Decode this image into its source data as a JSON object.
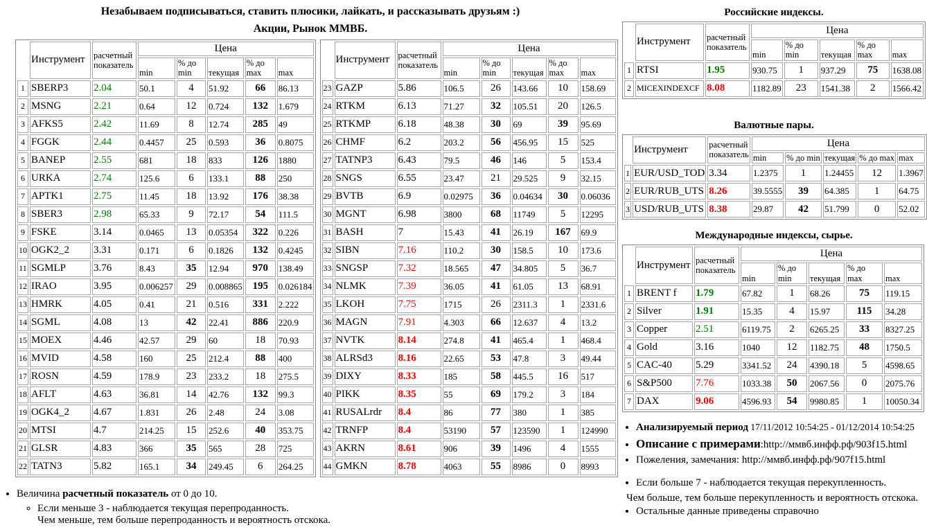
{
  "page": {
    "title_line1": "Незабываем подписываться, ставить плюсики, лайкать, и рассказывать друзьям :)",
    "stocks_title": "Акции, Рынок ММВБ."
  },
  "colors": {
    "oversold_green": "#008000",
    "overbought_red": "#ff0000",
    "table_border_gray": "#a4a4a4"
  },
  "headers": {
    "instrument": "Инструмент",
    "indicator": "расчетный показатель",
    "price": "Цена",
    "min": "min",
    "pct_to_min": "% до min",
    "current": "текущая",
    "pct_to_max": "% до max",
    "max": "max"
  },
  "stocks_left": {
    "rows": [
      {
        "n": "1",
        "name": "SBERP3",
        "ind": "2.04",
        "ic": "green",
        "min": "50.1",
        "pmin": "4",
        "cur": "51.92",
        "pmax": "66",
        "pmaxB": true,
        "max": "86.13"
      },
      {
        "n": "2",
        "name": "MSNG",
        "ind": "2.21",
        "ic": "green",
        "min": "0.64",
        "pmin": "12",
        "cur": "0.724",
        "pmax": "132",
        "pmaxB": true,
        "max": "1.679"
      },
      {
        "n": "3",
        "name": "AFKS5",
        "ind": "2.42",
        "ic": "green",
        "min": "11.69",
        "pmin": "8",
        "cur": "12.74",
        "pmax": "285",
        "pmaxB": true,
        "max": "49"
      },
      {
        "n": "4",
        "name": "FGGK",
        "ind": "2.44",
        "ic": "green",
        "min": "0.4457",
        "pmin": "25",
        "cur": "0.593",
        "pmax": "36",
        "pmaxB": true,
        "max": "0.8075"
      },
      {
        "n": "5",
        "name": "BANEP",
        "ind": "2.55",
        "ic": "green",
        "min": "681",
        "pmin": "18",
        "cur": "833",
        "pmax": "126",
        "pmaxB": true,
        "max": "1880"
      },
      {
        "n": "6",
        "name": "URKA",
        "ind": "2.74",
        "ic": "green",
        "min": "125.6",
        "pmin": "6",
        "cur": "133.1",
        "pmax": "88",
        "pmaxB": true,
        "max": "250"
      },
      {
        "n": "7",
        "name": "APTK1",
        "ind": "2.75",
        "ic": "green",
        "min": "11.45",
        "pmin": "18",
        "cur": "13.92",
        "pmax": "176",
        "pmaxB": true,
        "max": "38.38"
      },
      {
        "n": "8",
        "name": "SBER3",
        "ind": "2.98",
        "ic": "green",
        "min": "65.33",
        "pmin": "9",
        "cur": "72.17",
        "pmax": "54",
        "pmaxB": true,
        "max": "111.5"
      },
      {
        "n": "9",
        "name": "FSKE",
        "ind": "3.14",
        "ic": "",
        "min": "0.0465",
        "pmin": "13",
        "cur": "0.05354",
        "pmax": "322",
        "pmaxB": true,
        "max": "0.226"
      },
      {
        "n": "10",
        "name": "OGK2_2",
        "ind": "3.31",
        "ic": "",
        "min": "0.171",
        "pmin": "6",
        "cur": "0.1826",
        "pmax": "132",
        "pmaxB": true,
        "max": "0.4245"
      },
      {
        "n": "11",
        "name": "SGMLP",
        "ind": "3.76",
        "ic": "",
        "min": "8.43",
        "pmin": "35",
        "pminB": true,
        "cur": "12.94",
        "pmax": "970",
        "pmaxB": true,
        "max": "138.49"
      },
      {
        "n": "12",
        "name": "IRAO",
        "ind": "3.95",
        "ic": "",
        "min": "0.006257",
        "pmin": "29",
        "cur": "0.008865",
        "pmax": "195",
        "pmaxB": true,
        "max": "0.026184"
      },
      {
        "n": "13",
        "name": "HMRK",
        "ind": "4.05",
        "ic": "",
        "min": "0.41",
        "pmin": "21",
        "cur": "0.516",
        "pmax": "331",
        "pmaxB": true,
        "max": "2.222"
      },
      {
        "n": "14",
        "name": "SGML",
        "ind": "4.08",
        "ic": "",
        "min": "13",
        "pmin": "42",
        "pminB": true,
        "cur": "22.41",
        "pmax": "886",
        "pmaxB": true,
        "max": "220.9"
      },
      {
        "n": "15",
        "name": "MOEX",
        "ind": "4.46",
        "ic": "",
        "min": "42.57",
        "pmin": "29",
        "cur": "60",
        "pmax": "18",
        "max": "70.93"
      },
      {
        "n": "16",
        "name": "MVID",
        "ind": "4.58",
        "ic": "",
        "min": "160",
        "pmin": "25",
        "cur": "212.4",
        "pmax": "88",
        "pmaxB": true,
        "max": "400"
      },
      {
        "n": "17",
        "name": "ROSN",
        "ind": "4.59",
        "ic": "",
        "min": "178.9",
        "pmin": "23",
        "cur": "233.2",
        "pmax": "18",
        "max": "275.5"
      },
      {
        "n": "18",
        "name": "AFLT",
        "ind": "4.63",
        "ic": "",
        "min": "36.81",
        "pmin": "14",
        "cur": "42.76",
        "pmax": "132",
        "pmaxB": true,
        "max": "99.3"
      },
      {
        "n": "19",
        "name": "OGK4_2",
        "ind": "4.67",
        "ic": "",
        "min": "1.831",
        "pmin": "26",
        "cur": "2.48",
        "pmax": "24",
        "max": "3.08"
      },
      {
        "n": "20",
        "name": "MTSI",
        "ind": "4.7",
        "ic": "",
        "min": "214.25",
        "pmin": "15",
        "cur": "252.6",
        "pmax": "40",
        "pmaxB": true,
        "max": "353.75"
      },
      {
        "n": "21",
        "name": "GLSR",
        "ind": "4.83",
        "ic": "",
        "min": "366",
        "pmin": "35",
        "pminB": true,
        "cur": "565",
        "pmax": "28",
        "max": "725"
      },
      {
        "n": "22",
        "name": "TATN3",
        "ind": "5.82",
        "ic": "",
        "min": "165.1",
        "pmin": "34",
        "pminB": true,
        "cur": "249.45",
        "pmax": "6",
        "max": "264.25"
      }
    ]
  },
  "stocks_right": {
    "rows": [
      {
        "n": "23",
        "name": "GAZP",
        "ind": "5.86",
        "ic": "",
        "min": "106.5",
        "pmin": "26",
        "cur": "143.66",
        "pmax": "10",
        "max": "158.69"
      },
      {
        "n": "24",
        "name": "RTKM",
        "ind": "6.13",
        "ic": "",
        "min": "71.27",
        "pmin": "32",
        "pminB": true,
        "cur": "105.51",
        "pmax": "20",
        "max": "126.5"
      },
      {
        "n": "25",
        "name": "RTKMP",
        "ind": "6.18",
        "ic": "",
        "min": "48.38",
        "pmin": "30",
        "pminB": true,
        "cur": "69",
        "pmax": "39",
        "pmaxB": true,
        "max": "95.69"
      },
      {
        "n": "26",
        "name": "CHMF",
        "ind": "6.2",
        "ic": "",
        "min": "203.2",
        "pmin": "56",
        "pminB": true,
        "cur": "456.95",
        "pmax": "15",
        "max": "525"
      },
      {
        "n": "27",
        "name": "TATNP3",
        "ind": "6.43",
        "ic": "",
        "min": "79.5",
        "pmin": "46",
        "pminB": true,
        "cur": "146",
        "pmax": "5",
        "max": "153.4"
      },
      {
        "n": "28",
        "name": "SNGS",
        "ind": "6.55",
        "ic": "",
        "min": "23.47",
        "pmin": "21",
        "cur": "29.525",
        "pmax": "9",
        "max": "32.15"
      },
      {
        "n": "29",
        "name": "BVTB",
        "ind": "6.9",
        "ic": "",
        "min": "0.02975",
        "pmin": "36",
        "pminB": true,
        "cur": "0.04634",
        "pmax": "30",
        "pmaxB": true,
        "max": "0.06036"
      },
      {
        "n": "30",
        "name": "MGNT",
        "ind": "6.98",
        "ic": "",
        "min": "3800",
        "pmin": "68",
        "pminB": true,
        "cur": "11749",
        "pmax": "5",
        "max": "12295"
      },
      {
        "n": "31",
        "name": "BASH",
        "ind": "7",
        "ic": "",
        "min": "15.43",
        "pmin": "41",
        "pminB": true,
        "cur": "26.19",
        "pmax": "167",
        "pmaxB": true,
        "max": "69.9"
      },
      {
        "n": "32",
        "name": "SIBN",
        "ind": "7.16",
        "ic": "red",
        "min": "110.2",
        "pmin": "30",
        "pminB": true,
        "cur": "158.5",
        "pmax": "10",
        "max": "173.6"
      },
      {
        "n": "33",
        "name": "SNGSP",
        "ind": "7.32",
        "ic": "red",
        "min": "18.565",
        "pmin": "47",
        "pminB": true,
        "cur": "34.805",
        "pmax": "5",
        "max": "36.7"
      },
      {
        "n": "34",
        "name": "NLMK",
        "ind": "7.39",
        "ic": "red",
        "min": "36.05",
        "pmin": "41",
        "pminB": true,
        "cur": "61.05",
        "pmax": "13",
        "max": "68.91"
      },
      {
        "n": "35",
        "name": "LKOH",
        "ind": "7.75",
        "ic": "red",
        "min": "1715",
        "pmin": "26",
        "cur": "2311.3",
        "pmax": "1",
        "max": "2331.6"
      },
      {
        "n": "36",
        "name": "MAGN",
        "ind": "7.91",
        "ic": "red",
        "min": "4.303",
        "pmin": "66",
        "pminB": true,
        "cur": "12.637",
        "pmax": "4",
        "max": "13.2"
      },
      {
        "n": "37",
        "name": "NVTK",
        "ind": "8.14",
        "ic": "red bold",
        "min": "274.8",
        "pmin": "41",
        "pminB": true,
        "cur": "465.4",
        "pmax": "1",
        "max": "468.4"
      },
      {
        "n": "38",
        "name": "ALRSd3",
        "ind": "8.16",
        "ic": "red bold",
        "min": "22.65",
        "pmin": "53",
        "pminB": true,
        "cur": "47.8",
        "pmax": "3",
        "max": "49.44"
      },
      {
        "n": "39",
        "name": "DIXY",
        "ind": "8.33",
        "ic": "red bold",
        "min": "185",
        "pmin": "58",
        "pminB": true,
        "cur": "445.5",
        "pmax": "16",
        "max": "517"
      },
      {
        "n": "40",
        "name": "PIKK",
        "ind": "8.35",
        "ic": "red bold",
        "min": "55",
        "pmin": "69",
        "pminB": true,
        "cur": "179.2",
        "pmax": "3",
        "max": "184"
      },
      {
        "n": "41",
        "name": "RUSALrdr",
        "ind": "8.4",
        "ic": "red bold",
        "min": "86",
        "pmin": "77",
        "pminB": true,
        "cur": "380",
        "pmax": "1",
        "max": "385"
      },
      {
        "n": "42",
        "name": "TRNFP",
        "ind": "8.4",
        "ic": "red bold",
        "min": "53190",
        "pmin": "57",
        "pminB": true,
        "cur": "123590",
        "pmax": "1",
        "max": "124990"
      },
      {
        "n": "43",
        "name": "AKRN",
        "ind": "8.61",
        "ic": "red bold",
        "min": "906",
        "pmin": "39",
        "pminB": true,
        "cur": "1496",
        "pmax": "4",
        "max": "1555"
      },
      {
        "n": "44",
        "name": "GMKN",
        "ind": "8.78",
        "ic": "red bold",
        "min": "4063",
        "pmin": "55",
        "pminB": true,
        "cur": "8986",
        "pmax": "0",
        "max": "8993"
      }
    ]
  },
  "russian_indices": {
    "title": "Российские индексы.",
    "rows": [
      {
        "n": "1",
        "name": "RTSI",
        "ind": "1.95",
        "ic": "green bold",
        "min": "930.75",
        "pmin": "1",
        "cur": "937.29",
        "pmax": "75",
        "pmaxB": true,
        "max": "1638.08"
      },
      {
        "n": "2",
        "name": "MICEXINDEXCF",
        "ind": "8.08",
        "ic": "red bold",
        "min": "1182.89",
        "pmin": "23",
        "cur": "1541.38",
        "pmax": "2",
        "max": "1566.42"
      }
    ]
  },
  "currency_pairs": {
    "title": "Валютные пары.",
    "rows": [
      {
        "n": "1",
        "name": "EUR/USD_TOD",
        "ind": "3.34",
        "ic": "",
        "min": "1.2375",
        "pmin": "1",
        "cur": "1.24455",
        "pmax": "12",
        "max": "1.3967"
      },
      {
        "n": "2",
        "name": "EUR/RUB_UTS",
        "ind": "8.26",
        "ic": "red bold",
        "min": "39.5555",
        "pmin": "39",
        "pminB": true,
        "cur": "64.385",
        "pmax": "1",
        "max": "64.75"
      },
      {
        "n": "3",
        "name": "USD/RUB_UTS",
        "ind": "8.38",
        "ic": "red bold",
        "min": "29.87",
        "pmin": "42",
        "pminB": true,
        "cur": "51.799",
        "pmax": "0",
        "max": "52.02"
      }
    ]
  },
  "international": {
    "title": "Международные индексы, сырье.",
    "rows": [
      {
        "n": "1",
        "name": "BRENT f",
        "ind": "1.79",
        "ic": "green bold",
        "min": "67.82",
        "pmin": "1",
        "cur": "68.26",
        "pmax": "75",
        "pmaxB": true,
        "max": "119.15"
      },
      {
        "n": "2",
        "name": "Silver",
        "ind": "1.91",
        "ic": "green bold",
        "min": "15.35",
        "pmin": "4",
        "cur": "15.97",
        "pmax": "115",
        "pmaxB": true,
        "max": "34.28"
      },
      {
        "n": "3",
        "name": "Copper",
        "ind": "2.51",
        "ic": "green",
        "min": "6119.75",
        "pmin": "2",
        "cur": "6265.25",
        "pmax": "33",
        "pmaxB": true,
        "max": "8327.25"
      },
      {
        "n": "4",
        "name": "Gold",
        "ind": "3.16",
        "ic": "",
        "min": "1040",
        "pmin": "12",
        "cur": "1182.75",
        "pmax": "48",
        "pmaxB": true,
        "max": "1750.5"
      },
      {
        "n": "5",
        "name": "CAC-40",
        "ind": "5.29",
        "ic": "",
        "min": "3341.52",
        "pmin": "24",
        "cur": "4390.18",
        "pmax": "5",
        "max": "4598.65"
      },
      {
        "n": "6",
        "name": "S&P500",
        "ind": "7.76",
        "ic": "red",
        "min": "1033.38",
        "pmin": "50",
        "pminB": true,
        "cur": "2067.56",
        "pmax": "0",
        "max": "2075.76"
      },
      {
        "n": "7",
        "name": "DAX",
        "ind": "9.06",
        "ic": "red bold",
        "min": "4596.93",
        "pmin": "54",
        "pminB": true,
        "cur": "9980.85",
        "pmax": "1",
        "max": "10050.34"
      }
    ]
  },
  "notes_left": {
    "pre": "Величина ",
    "bold": "расчетный показатель",
    "post": " от 0 до 10.",
    "sub1": "Если меньше 3 - наблюдается текущая перепроданность.",
    "sub2": "Чем меньше, тем больше перепроданность и вероятность отскока."
  },
  "notes_right": {
    "period_label": "Анализируемый период",
    "period_value": " 17/11/2012 10:54:25 - 01/12/2014 10:54:25",
    "desc_label": "Описание с примерами",
    "desc_value": ":http://ммвб.инфф.рф/903f15.html",
    "feedback": "Пожеления, замечания: http://ммвб.инфф.рф/907f15.html",
    "over1": "Если больше 7 - наблюдается текущая перекупленность.",
    "over2": "Чем больше, тем больше перекупленность и вероятность отскока.",
    "over3": "Остальные данные приведены справочно"
  }
}
